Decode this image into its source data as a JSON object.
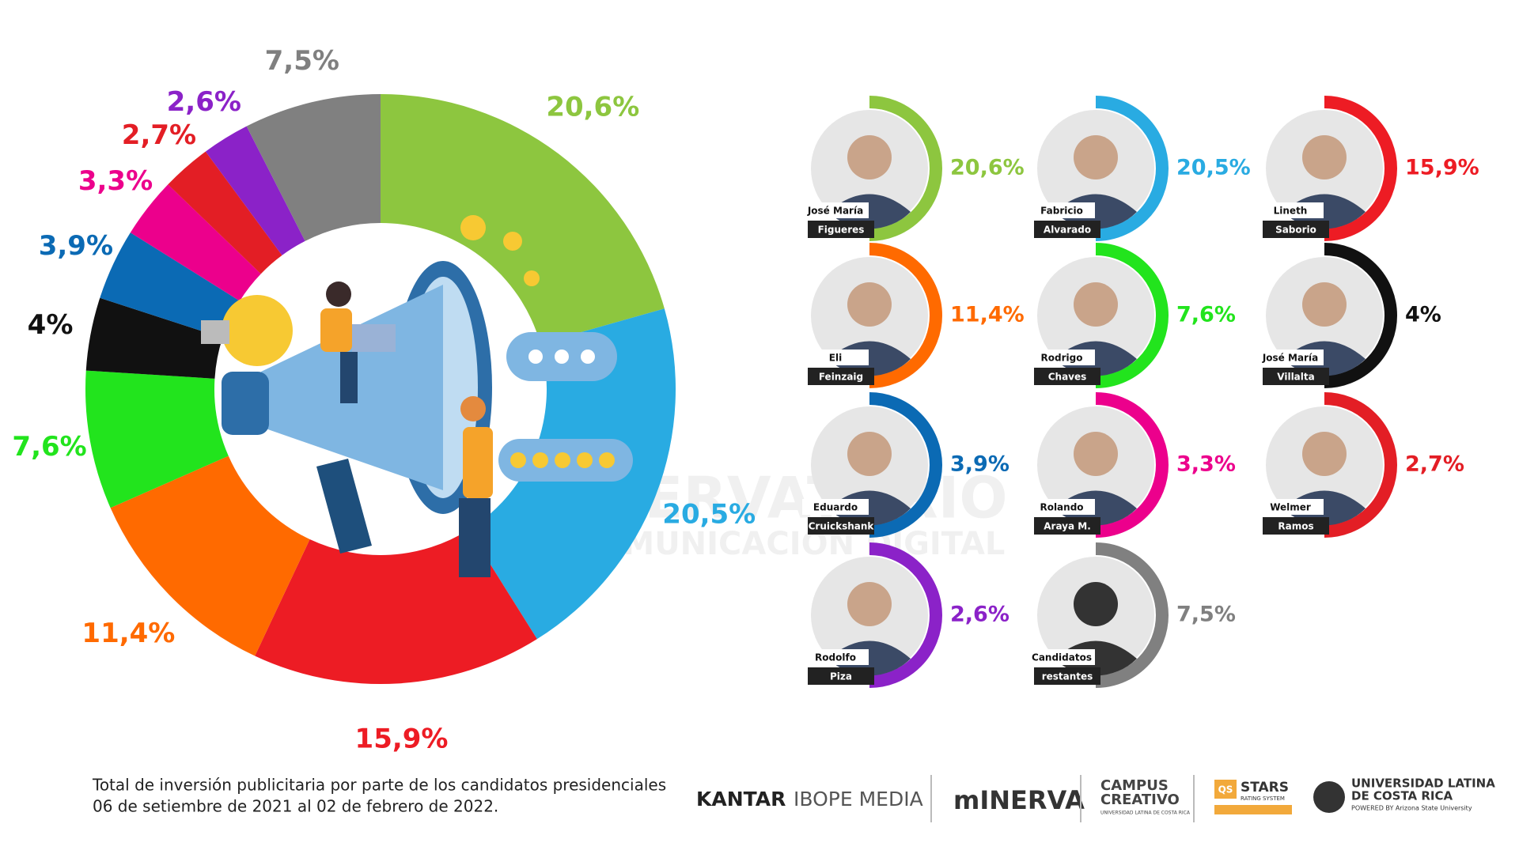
{
  "chart_data": {
    "type": "donut",
    "values": [
      20.6,
      20.5,
      15.9,
      11.4,
      7.6,
      4,
      3.9,
      3.3,
      2.7,
      2.6,
      7.5
    ],
    "value_labels": [
      "20,6%",
      "20,5%",
      "15,9%",
      "11,4%",
      "7,6%",
      "4%",
      "3,9%",
      "3,3%",
      "2,7%",
      "2,6%",
      "7,5%"
    ],
    "colors": [
      "#8dc63f",
      "#29abe2",
      "#ed1c24",
      "#ff6a00",
      "#22e41d",
      "#111111",
      "#0b6ab4",
      "#ec008c",
      "#e31e25",
      "#8b22c8",
      "#808080"
    ]
  },
  "candidates": [
    {
      "first": "José María",
      "last": "Figueres"
    },
    {
      "first": "Fabricio",
      "last": "Alvarado"
    },
    {
      "first": "Lineth",
      "last": "Saborio"
    },
    {
      "first": "Eli",
      "last": "Feinzaig"
    },
    {
      "first": "Rodrigo",
      "last": "Chaves"
    },
    {
      "first": "José María",
      "last": "Villalta"
    },
    {
      "first": "Eduardo",
      "last": "Cruickshank"
    },
    {
      "first": "Rolando",
      "last": "Araya M."
    },
    {
      "first": "Welmer",
      "last": "Ramos"
    },
    {
      "first": "Rodolfo",
      "last": "Piza"
    },
    {
      "first": "Candidatos",
      "last": "restantes"
    }
  ],
  "watermark": [
    "OBSERVATORIO",
    "DE COMUNICACIÓN DIGITAL"
  ],
  "footer": {
    "lines": [
      "Total de inversión publicitaria por parte de los candidatos presidenciales",
      "06 de setiembre de 2021 al 02 de febrero de 2022."
    ],
    "logos": {
      "kantar": "KANTAR",
      "ibope": "IBOPE MEDIA",
      "minerva": "mINERVA",
      "campus": [
        "CAMPUS",
        "CREATIVO",
        "UNIVERSIDAD LATINA DE COSTA RICA"
      ],
      "qs": [
        "QS",
        "STARS",
        "RATING SYSTEM"
      ],
      "ulatina": [
        "UNIVERSIDAD LATINA",
        "DE COSTA RICA",
        "POWERED BY Arizona State University"
      ]
    }
  }
}
